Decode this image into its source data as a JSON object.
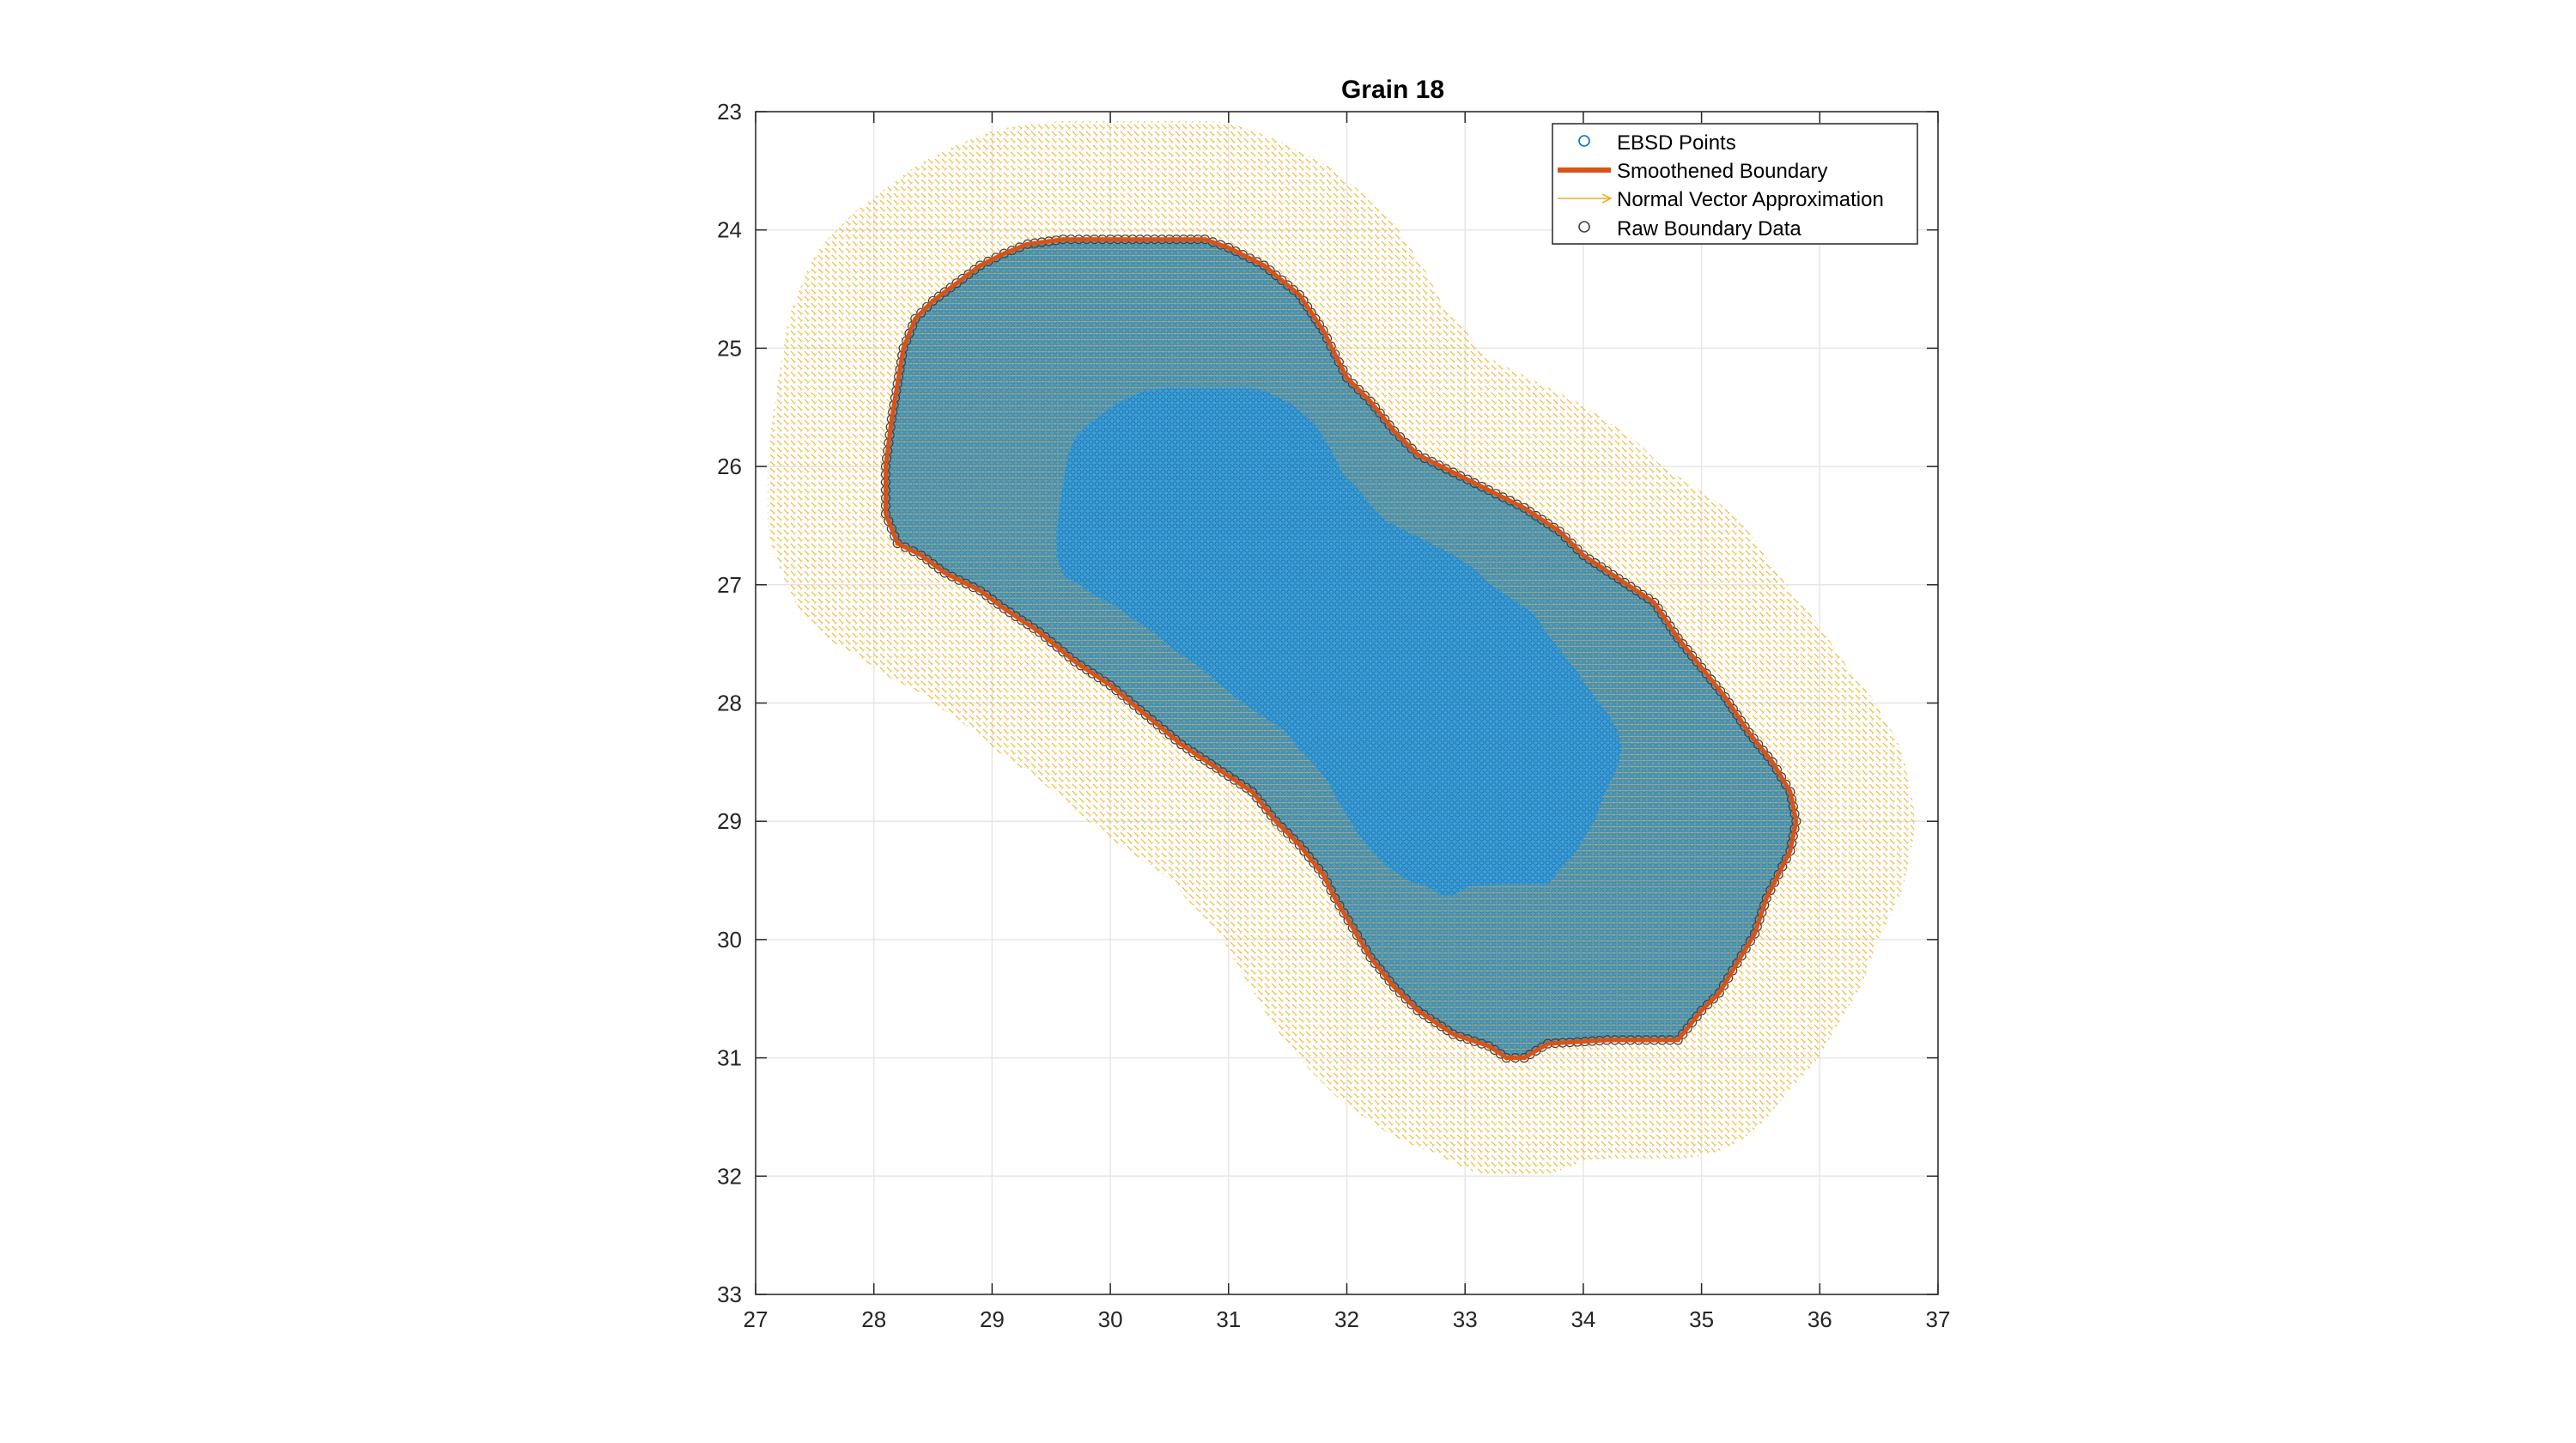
{
  "chart_data": {
    "type": "scatter",
    "title": "Grain 18",
    "xlabel": "",
    "ylabel": "",
    "xlim": [
      27,
      37
    ],
    "ylim": [
      23,
      33
    ],
    "y_reversed": true,
    "grid": true,
    "xticks": [
      27,
      28,
      29,
      30,
      31,
      32,
      33,
      34,
      35,
      36,
      37
    ],
    "yticks": [
      23,
      24,
      25,
      26,
      27,
      28,
      29,
      30,
      31,
      32,
      33
    ],
    "legend": {
      "position": "top-right",
      "entries": [
        "EBSD Points",
        "Smoothened Boundary",
        "Normal Vector Approximation",
        "Raw Boundary Data"
      ]
    },
    "colors": {
      "ebsd_points": "#0072BD",
      "smoothened_boundary": "#D95319",
      "normal_vectors": "#EDB120",
      "raw_boundary": "#404040",
      "grain_fill": "#3A9FD8",
      "grain_band": "#4A90A0"
    },
    "series": [
      {
        "name": "Smoothened Boundary",
        "kind": "line",
        "x": [
          29.6,
          30.0,
          30.5,
          30.8,
          31.0,
          31.3,
          31.6,
          31.8,
          31.9,
          32.0,
          32.2,
          32.4,
          32.6,
          32.9,
          33.2,
          33.5,
          33.8,
          34.0,
          34.3,
          34.6,
          34.8,
          35.0,
          35.2,
          35.4,
          35.6,
          35.75,
          35.8,
          35.75,
          35.65,
          35.55,
          35.45,
          35.3,
          35.15,
          35.0,
          34.8,
          34.2,
          33.7,
          33.5,
          33.35,
          33.2,
          32.9,
          32.6,
          32.4,
          32.2,
          32.05,
          31.9,
          31.8,
          31.6,
          31.4,
          31.2,
          30.9,
          30.6,
          30.3,
          30.0,
          29.7,
          29.4,
          29.1,
          28.9,
          28.6,
          28.4,
          28.2,
          28.1,
          28.1,
          28.15,
          28.2,
          28.25,
          28.35,
          28.5,
          28.7,
          28.9,
          29.1,
          29.3,
          29.6
        ],
        "y": [
          24.08,
          24.08,
          24.08,
          24.08,
          24.15,
          24.3,
          24.55,
          24.85,
          25.05,
          25.25,
          25.45,
          25.7,
          25.9,
          26.05,
          26.2,
          26.35,
          26.55,
          26.75,
          26.95,
          27.15,
          27.45,
          27.7,
          27.95,
          28.25,
          28.5,
          28.75,
          29.0,
          29.25,
          29.45,
          29.65,
          29.95,
          30.2,
          30.45,
          30.6,
          30.85,
          30.85,
          30.88,
          31.0,
          31.0,
          30.9,
          30.8,
          30.6,
          30.4,
          30.15,
          29.9,
          29.65,
          29.45,
          29.2,
          29.0,
          28.75,
          28.55,
          28.35,
          28.1,
          27.85,
          27.65,
          27.4,
          27.2,
          27.05,
          26.9,
          26.75,
          26.65,
          26.4,
          26.0,
          25.6,
          25.3,
          25.0,
          24.75,
          24.6,
          24.45,
          24.3,
          24.2,
          24.12,
          24.08
        ]
      },
      {
        "name": "EBSD Points",
        "kind": "marker-grid",
        "spacing": 0.05,
        "region": "inside Smoothened Boundary"
      },
      {
        "name": "Raw Boundary Data",
        "kind": "marker",
        "region": "along Smoothened Boundary"
      },
      {
        "name": "Normal Vector Approximation",
        "kind": "vector-field",
        "region": "band outside Smoothened Boundary, width ~1.0"
      }
    ]
  }
}
